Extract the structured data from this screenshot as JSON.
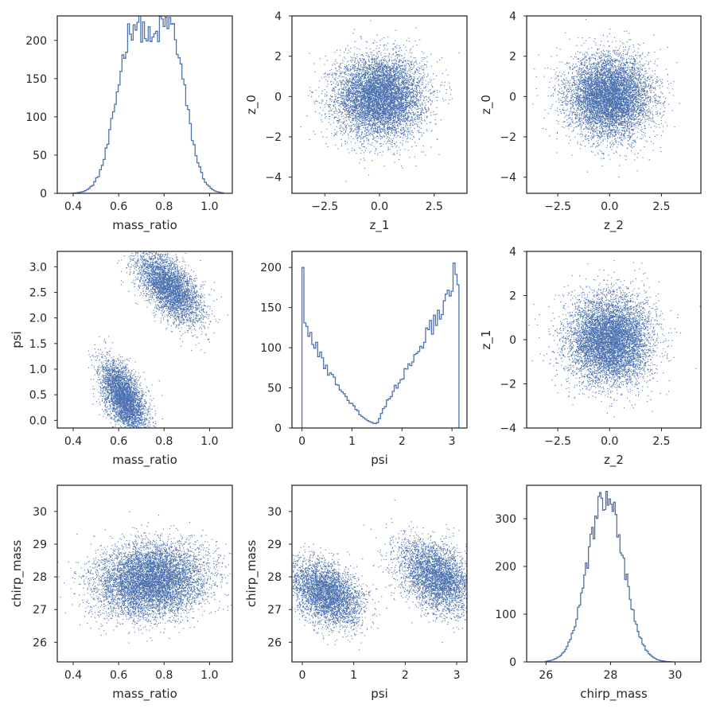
{
  "colors": {
    "series": "#4c72b0",
    "axes": "#262626",
    "background": "#ffffff"
  },
  "chart_data": [
    {
      "panel": "r1c1",
      "type": "histogram",
      "xlabel": "mass_ratio",
      "ylabel": "",
      "xlim": [
        0.33,
        1.1
      ],
      "ylim": [
        0,
        232
      ],
      "xticks": [
        0.4,
        0.6,
        0.8,
        1.0
      ],
      "xtick_labels": [
        "0.4",
        "0.6",
        "0.8",
        "1.0"
      ],
      "yticks": [
        0,
        50,
        100,
        150,
        200
      ],
      "ytick_labels": [
        "0",
        "50",
        "100",
        "150",
        "200"
      ],
      "dist": {
        "shape": "bimodal_plateau",
        "peak_positions": [
          0.67,
          0.82
        ],
        "peak_height": 222,
        "range": [
          0.4,
          1.06
        ]
      }
    },
    {
      "panel": "r1c2",
      "type": "scatter",
      "xlabel": "z_1",
      "ylabel": "z_0",
      "xlim": [
        -4.0,
        4.0
      ],
      "ylim": [
        -4.8,
        4.0
      ],
      "xticks": [
        -2.5,
        0.0,
        2.5
      ],
      "xtick_labels": [
        "−2.5",
        "0.0",
        "2.5"
      ],
      "yticks": [
        -4,
        -2,
        0,
        2,
        4
      ],
      "ytick_labels": [
        "−4",
        "−2",
        "0",
        "2",
        "4"
      ],
      "dist": {
        "x_mean": 0.0,
        "x_sd": 1.0,
        "y_mean": 0.0,
        "y_sd": 1.0
      }
    },
    {
      "panel": "r1c3",
      "type": "scatter",
      "xlabel": "z_2",
      "ylabel": "z_0",
      "xlim": [
        -4.0,
        4.4
      ],
      "ylim": [
        -4.8,
        4.0
      ],
      "xticks": [
        -2.5,
        0.0,
        2.5
      ],
      "xtick_labels": [
        "−2.5",
        "0.0",
        "2.5"
      ],
      "yticks": [
        -4,
        -2,
        0,
        2,
        4
      ],
      "ytick_labels": [
        "−4",
        "−2",
        "0",
        "2",
        "4"
      ],
      "dist": {
        "x_mean": 0.0,
        "x_sd": 1.0,
        "y_mean": 0.0,
        "y_sd": 1.0
      }
    },
    {
      "panel": "r2c1",
      "type": "scatter",
      "xlabel": "mass_ratio",
      "ylabel": "psi",
      "xlim": [
        0.33,
        1.1
      ],
      "ylim": [
        -0.15,
        3.3
      ],
      "xticks": [
        0.4,
        0.6,
        0.8,
        1.0
      ],
      "xtick_labels": [
        "0.4",
        "0.6",
        "0.8",
        "1.0"
      ],
      "yticks": [
        0.0,
        0.5,
        1.0,
        1.5,
        2.0,
        2.5,
        3.0
      ],
      "ytick_labels": [
        "0.0",
        "0.5",
        "1.0",
        "1.5",
        "2.0",
        "2.5",
        "3.0"
      ],
      "dist": {
        "clusters": [
          {
            "x_mean": 0.62,
            "x_sd": 0.05,
            "y_mean": 0.45,
            "y_sd": 0.35,
            "corr": -0.55
          },
          {
            "x_mean": 0.82,
            "x_sd": 0.07,
            "y_mean": 2.6,
            "y_sd": 0.35,
            "corr": -0.6
          }
        ]
      }
    },
    {
      "panel": "r2c2",
      "type": "histogram",
      "xlabel": "psi",
      "ylabel": "",
      "xlim": [
        -0.2,
        3.3
      ],
      "ylim": [
        0,
        220
      ],
      "xticks": [
        0,
        1,
        2,
        3
      ],
      "xtick_labels": [
        "0",
        "1",
        "2",
        "3"
      ],
      "yticks": [
        0,
        50,
        100,
        150,
        200
      ],
      "ytick_labels": [
        "0",
        "50",
        "100",
        "150",
        "200"
      ],
      "dist": {
        "shape": "u_shaped",
        "left_edge": 200,
        "minimum_at": 1.5,
        "minimum_value": 5,
        "right_edge": 210,
        "range": [
          0,
          3.14
        ]
      }
    },
    {
      "panel": "r2c3",
      "type": "scatter",
      "xlabel": "z_2",
      "ylabel": "z_1",
      "xlim": [
        -4.0,
        4.4
      ],
      "ylim": [
        -4.0,
        4.0
      ],
      "xticks": [
        -2.5,
        0.0,
        2.5
      ],
      "xtick_labels": [
        "−2.5",
        "0.0",
        "2.5"
      ],
      "yticks": [
        -4,
        -2,
        0,
        2,
        4
      ],
      "ytick_labels": [
        "−4",
        "−2",
        "0",
        "2",
        "4"
      ],
      "dist": {
        "x_mean": 0.0,
        "x_sd": 1.0,
        "y_mean": 0.0,
        "y_sd": 1.0
      }
    },
    {
      "panel": "r3c1",
      "type": "scatter",
      "xlabel": "mass_ratio",
      "ylabel": "chirp_mass",
      "xlim": [
        0.33,
        1.1
      ],
      "ylim": [
        25.4,
        30.8
      ],
      "xticks": [
        0.4,
        0.6,
        0.8,
        1.0
      ],
      "xtick_labels": [
        "0.4",
        "0.6",
        "0.8",
        "1.0"
      ],
      "yticks": [
        26,
        27,
        28,
        29,
        30
      ],
      "ytick_labels": [
        "26",
        "27",
        "28",
        "29",
        "30"
      ],
      "dist": {
        "x_mean": 0.74,
        "x_sd": 0.12,
        "y_mean": 27.9,
        "y_sd": 0.55,
        "corr": 0.1
      }
    },
    {
      "panel": "r3c2",
      "type": "scatter",
      "xlabel": "psi",
      "ylabel": "chirp_mass",
      "xlim": [
        -0.2,
        3.2
      ],
      "ylim": [
        25.4,
        30.8
      ],
      "xticks": [
        0,
        1,
        2,
        3
      ],
      "xtick_labels": [
        "0",
        "1",
        "2",
        "3"
      ],
      "yticks": [
        26,
        27,
        28,
        29,
        30
      ],
      "ytick_labels": [
        "26",
        "27",
        "28",
        "29",
        "30"
      ],
      "dist": {
        "clusters": [
          {
            "x_mean": 0.45,
            "x_sd": 0.35,
            "y_mean": 27.5,
            "y_sd": 0.5,
            "corr": -0.4
          },
          {
            "x_mean": 2.6,
            "x_sd": 0.38,
            "y_mean": 28.0,
            "y_sd": 0.55,
            "corr": -0.4
          }
        ]
      }
    },
    {
      "panel": "r3c3",
      "type": "histogram",
      "xlabel": "chirp_mass",
      "ylabel": "",
      "xlim": [
        25.4,
        30.8
      ],
      "ylim": [
        0,
        370
      ],
      "xticks": [
        26,
        28,
        30
      ],
      "xtick_labels": [
        "26",
        "28",
        "30"
      ],
      "yticks": [
        0,
        100,
        200,
        300
      ],
      "ytick_labels": [
        "0",
        "100",
        "200",
        "300"
      ],
      "dist": {
        "shape": "gaussian",
        "mean": 27.85,
        "sd": 0.55,
        "peak_height": 350,
        "range": [
          26,
          29.9
        ]
      }
    }
  ]
}
